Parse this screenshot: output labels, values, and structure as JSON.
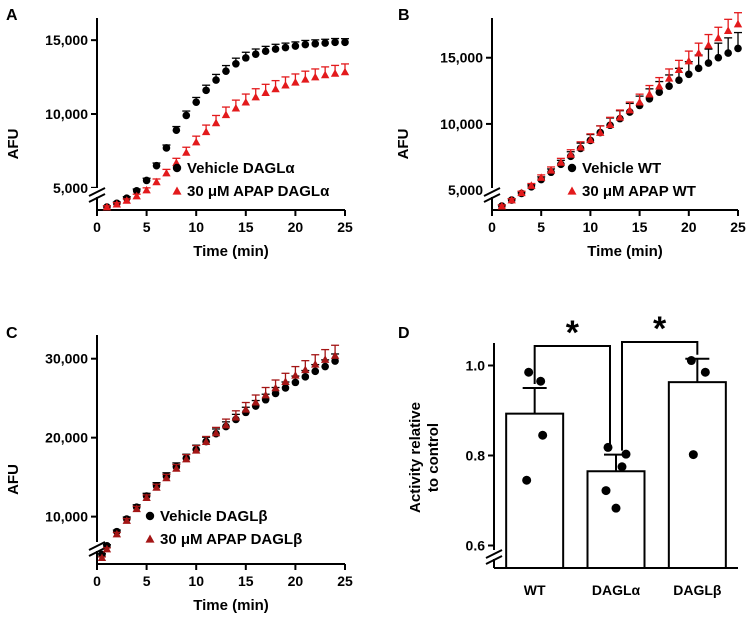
{
  "chart_data": [
    {
      "id": "A",
      "type": "line",
      "panel_label": "A",
      "title": "",
      "xlabel": "Time (min)",
      "ylabel": "AFU",
      "xlim": [
        0,
        25
      ],
      "ylim": [
        3500,
        16500
      ],
      "xticks": [
        0,
        5,
        10,
        15,
        20,
        25
      ],
      "yticks": [
        5000,
        10000,
        15000
      ],
      "ytick_labels": [
        "5,000",
        "10,000",
        "15,000"
      ],
      "axis_break": true,
      "legend": [
        "Vehicle DAGLα",
        "30 μM APAP DAGLα"
      ],
      "series": [
        {
          "name": "Vehicle DAGLα",
          "color": "#000000",
          "marker": "circle",
          "x": [
            1,
            2,
            3,
            4,
            5,
            6,
            7,
            8,
            9,
            10,
            11,
            12,
            13,
            14,
            15,
            16,
            17,
            18,
            19,
            20,
            21,
            22,
            23,
            24,
            25
          ],
          "y": [
            3700,
            3950,
            4300,
            4800,
            5500,
            6500,
            7700,
            8900,
            9900,
            10800,
            11600,
            12300,
            12900,
            13400,
            13800,
            14050,
            14250,
            14400,
            14500,
            14600,
            14700,
            14750,
            14800,
            14850,
            14850
          ],
          "err": [
            80,
            90,
            100,
            120,
            150,
            180,
            200,
            250,
            300,
            320,
            350,
            380,
            380,
            380,
            380,
            350,
            330,
            320,
            300,
            280,
            280,
            270,
            260,
            260,
            250
          ]
        },
        {
          "name": "30 μM APAP DAGLα",
          "color": "#e31a1c",
          "marker": "triangle",
          "x": [
            1,
            2,
            3,
            4,
            5,
            6,
            7,
            8,
            9,
            10,
            11,
            12,
            13,
            14,
            15,
            16,
            17,
            18,
            19,
            20,
            21,
            22,
            23,
            24,
            25
          ],
          "y": [
            3700,
            3900,
            4150,
            4450,
            4850,
            5400,
            6000,
            6700,
            7400,
            8100,
            8800,
            9400,
            9950,
            10400,
            10800,
            11150,
            11450,
            11700,
            11950,
            12150,
            12350,
            12500,
            12650,
            12750,
            12850
          ],
          "err": [
            80,
            90,
            100,
            120,
            150,
            200,
            250,
            300,
            350,
            400,
            450,
            500,
            520,
            540,
            550,
            560,
            560,
            560,
            560,
            560,
            550,
            550,
            540,
            540,
            540
          ]
        }
      ]
    },
    {
      "id": "B",
      "type": "line",
      "panel_label": "B",
      "title": "",
      "xlabel": "Time (min)",
      "ylabel": "AFU",
      "xlim": [
        0,
        25
      ],
      "ylim": [
        3500,
        18000
      ],
      "xticks": [
        0,
        5,
        10,
        15,
        20,
        25
      ],
      "yticks": [
        5000,
        10000,
        15000
      ],
      "ytick_labels": [
        "5,000",
        "10,000",
        "15,000"
      ],
      "axis_break": true,
      "legend": [
        "Vehicle WT",
        "30 μM APAP WT"
      ],
      "series": [
        {
          "name": "Vehicle WT",
          "color": "#000000",
          "marker": "circle",
          "x": [
            1,
            2,
            3,
            4,
            5,
            6,
            7,
            8,
            9,
            10,
            11,
            12,
            13,
            14,
            15,
            16,
            17,
            18,
            19,
            20,
            21,
            22,
            23,
            24,
            25
          ],
          "y": [
            3800,
            4250,
            4750,
            5250,
            5800,
            6350,
            6950,
            7550,
            8150,
            8750,
            9350,
            9900,
            10400,
            10900,
            11400,
            11900,
            12400,
            12850,
            13300,
            13750,
            14200,
            14600,
            15000,
            15350,
            15700
          ],
          "err": [
            80,
            100,
            120,
            150,
            200,
            250,
            300,
            350,
            400,
            450,
            500,
            550,
            600,
            650,
            700,
            750,
            800,
            850,
            900,
            950,
            1000,
            1050,
            1100,
            1150,
            1200
          ]
        },
        {
          "name": "30 μM APAP WT",
          "color": "#e31a1c",
          "marker": "triangle",
          "x": [
            1,
            2,
            3,
            4,
            5,
            6,
            7,
            8,
            9,
            10,
            11,
            12,
            13,
            14,
            15,
            16,
            17,
            18,
            19,
            20,
            21,
            22,
            23,
            24,
            25
          ],
          "y": [
            3800,
            4250,
            4800,
            5350,
            5950,
            6500,
            7100,
            7700,
            8250,
            8800,
            9350,
            9950,
            10500,
            11050,
            11650,
            12250,
            12850,
            13450,
            14100,
            14750,
            15350,
            15950,
            16500,
            17050,
            17550
          ],
          "err": [
            80,
            100,
            120,
            150,
            200,
            250,
            300,
            350,
            400,
            450,
            500,
            550,
            550,
            600,
            600,
            650,
            650,
            700,
            700,
            750,
            750,
            800,
            800,
            850,
            850
          ]
        }
      ]
    },
    {
      "id": "C",
      "type": "line",
      "panel_label": "C",
      "title": "",
      "xlabel": "Time (min)",
      "ylabel": "AFU",
      "xlim": [
        0,
        25
      ],
      "ylim": [
        4000,
        33000
      ],
      "xticks": [
        0,
        5,
        10,
        15,
        20,
        25
      ],
      "yticks": [
        10000,
        20000,
        30000
      ],
      "ytick_labels": [
        "10,000",
        "20,000",
        "30,000"
      ],
      "axis_break": true,
      "legend": [
        "Vehicle DAGLβ",
        "30 μM APAP DAGLβ"
      ],
      "series": [
        {
          "name": "Vehicle DAGLβ",
          "color": "#000000",
          "marker": "circle",
          "x": [
            0.5,
            1,
            2,
            3,
            4,
            5,
            6,
            7,
            8,
            9,
            10,
            11,
            12,
            13,
            14,
            15,
            16,
            17,
            18,
            19,
            20,
            21,
            22,
            23,
            24
          ],
          "y": [
            5200,
            6300,
            8100,
            9700,
            11200,
            12600,
            13900,
            15100,
            16300,
            17400,
            18500,
            19500,
            20500,
            21400,
            22300,
            23200,
            24000,
            24800,
            25600,
            26300,
            27000,
            27700,
            28400,
            29000,
            29700
          ],
          "err": [
            100,
            150,
            200,
            250,
            300,
            350,
            400,
            450,
            500,
            500,
            550,
            550,
            600,
            600,
            650,
            650,
            700,
            700,
            750,
            750,
            800,
            800,
            850,
            850,
            900
          ]
        },
        {
          "name": "30 μM APAP DAGLβ",
          "color": "#a31515",
          "marker": "triangle",
          "x": [
            0.5,
            1,
            2,
            3,
            4,
            5,
            6,
            7,
            8,
            9,
            10,
            11,
            12,
            13,
            14,
            15,
            16,
            17,
            18,
            19,
            20,
            21,
            22,
            23,
            24
          ],
          "y": [
            4800,
            5900,
            7800,
            9500,
            11000,
            12400,
            13700,
            14900,
            16100,
            17300,
            18400,
            19500,
            20600,
            21600,
            22600,
            23600,
            24500,
            25400,
            26300,
            27100,
            27900,
            28600,
            29300,
            29900,
            30400
          ],
          "err": [
            100,
            150,
            200,
            250,
            300,
            350,
            400,
            450,
            500,
            550,
            600,
            650,
            700,
            750,
            800,
            850,
            900,
            950,
            1000,
            1050,
            1100,
            1150,
            1200,
            1250,
            1300
          ]
        }
      ]
    },
    {
      "id": "D",
      "type": "bar",
      "panel_label": "D",
      "title": "",
      "xlabel": "",
      "ylabel_lines": [
        "Activity relative",
        "to control"
      ],
      "ylim": [
        0.55,
        1.05
      ],
      "yticks": [
        0.6,
        0.8,
        1.0
      ],
      "ytick_labels": [
        "0.6",
        "0.8",
        "1.0"
      ],
      "axis_break": true,
      "categories": [
        "WT",
        "DAGLα",
        "DAGLβ"
      ],
      "values": [
        0.893,
        0.765,
        0.963
      ],
      "sem": [
        0.057,
        0.037,
        0.052
      ],
      "points": [
        [
          0.985,
          0.965,
          0.845,
          0.745
        ],
        [
          0.818,
          0.803,
          0.775,
          0.722,
          0.683
        ],
        [
          1.011,
          0.985,
          0.802
        ]
      ],
      "significance": [
        {
          "from": 0,
          "to": 1,
          "label": "*"
        },
        {
          "from": 1,
          "to": 2,
          "label": "*"
        }
      ]
    }
  ]
}
